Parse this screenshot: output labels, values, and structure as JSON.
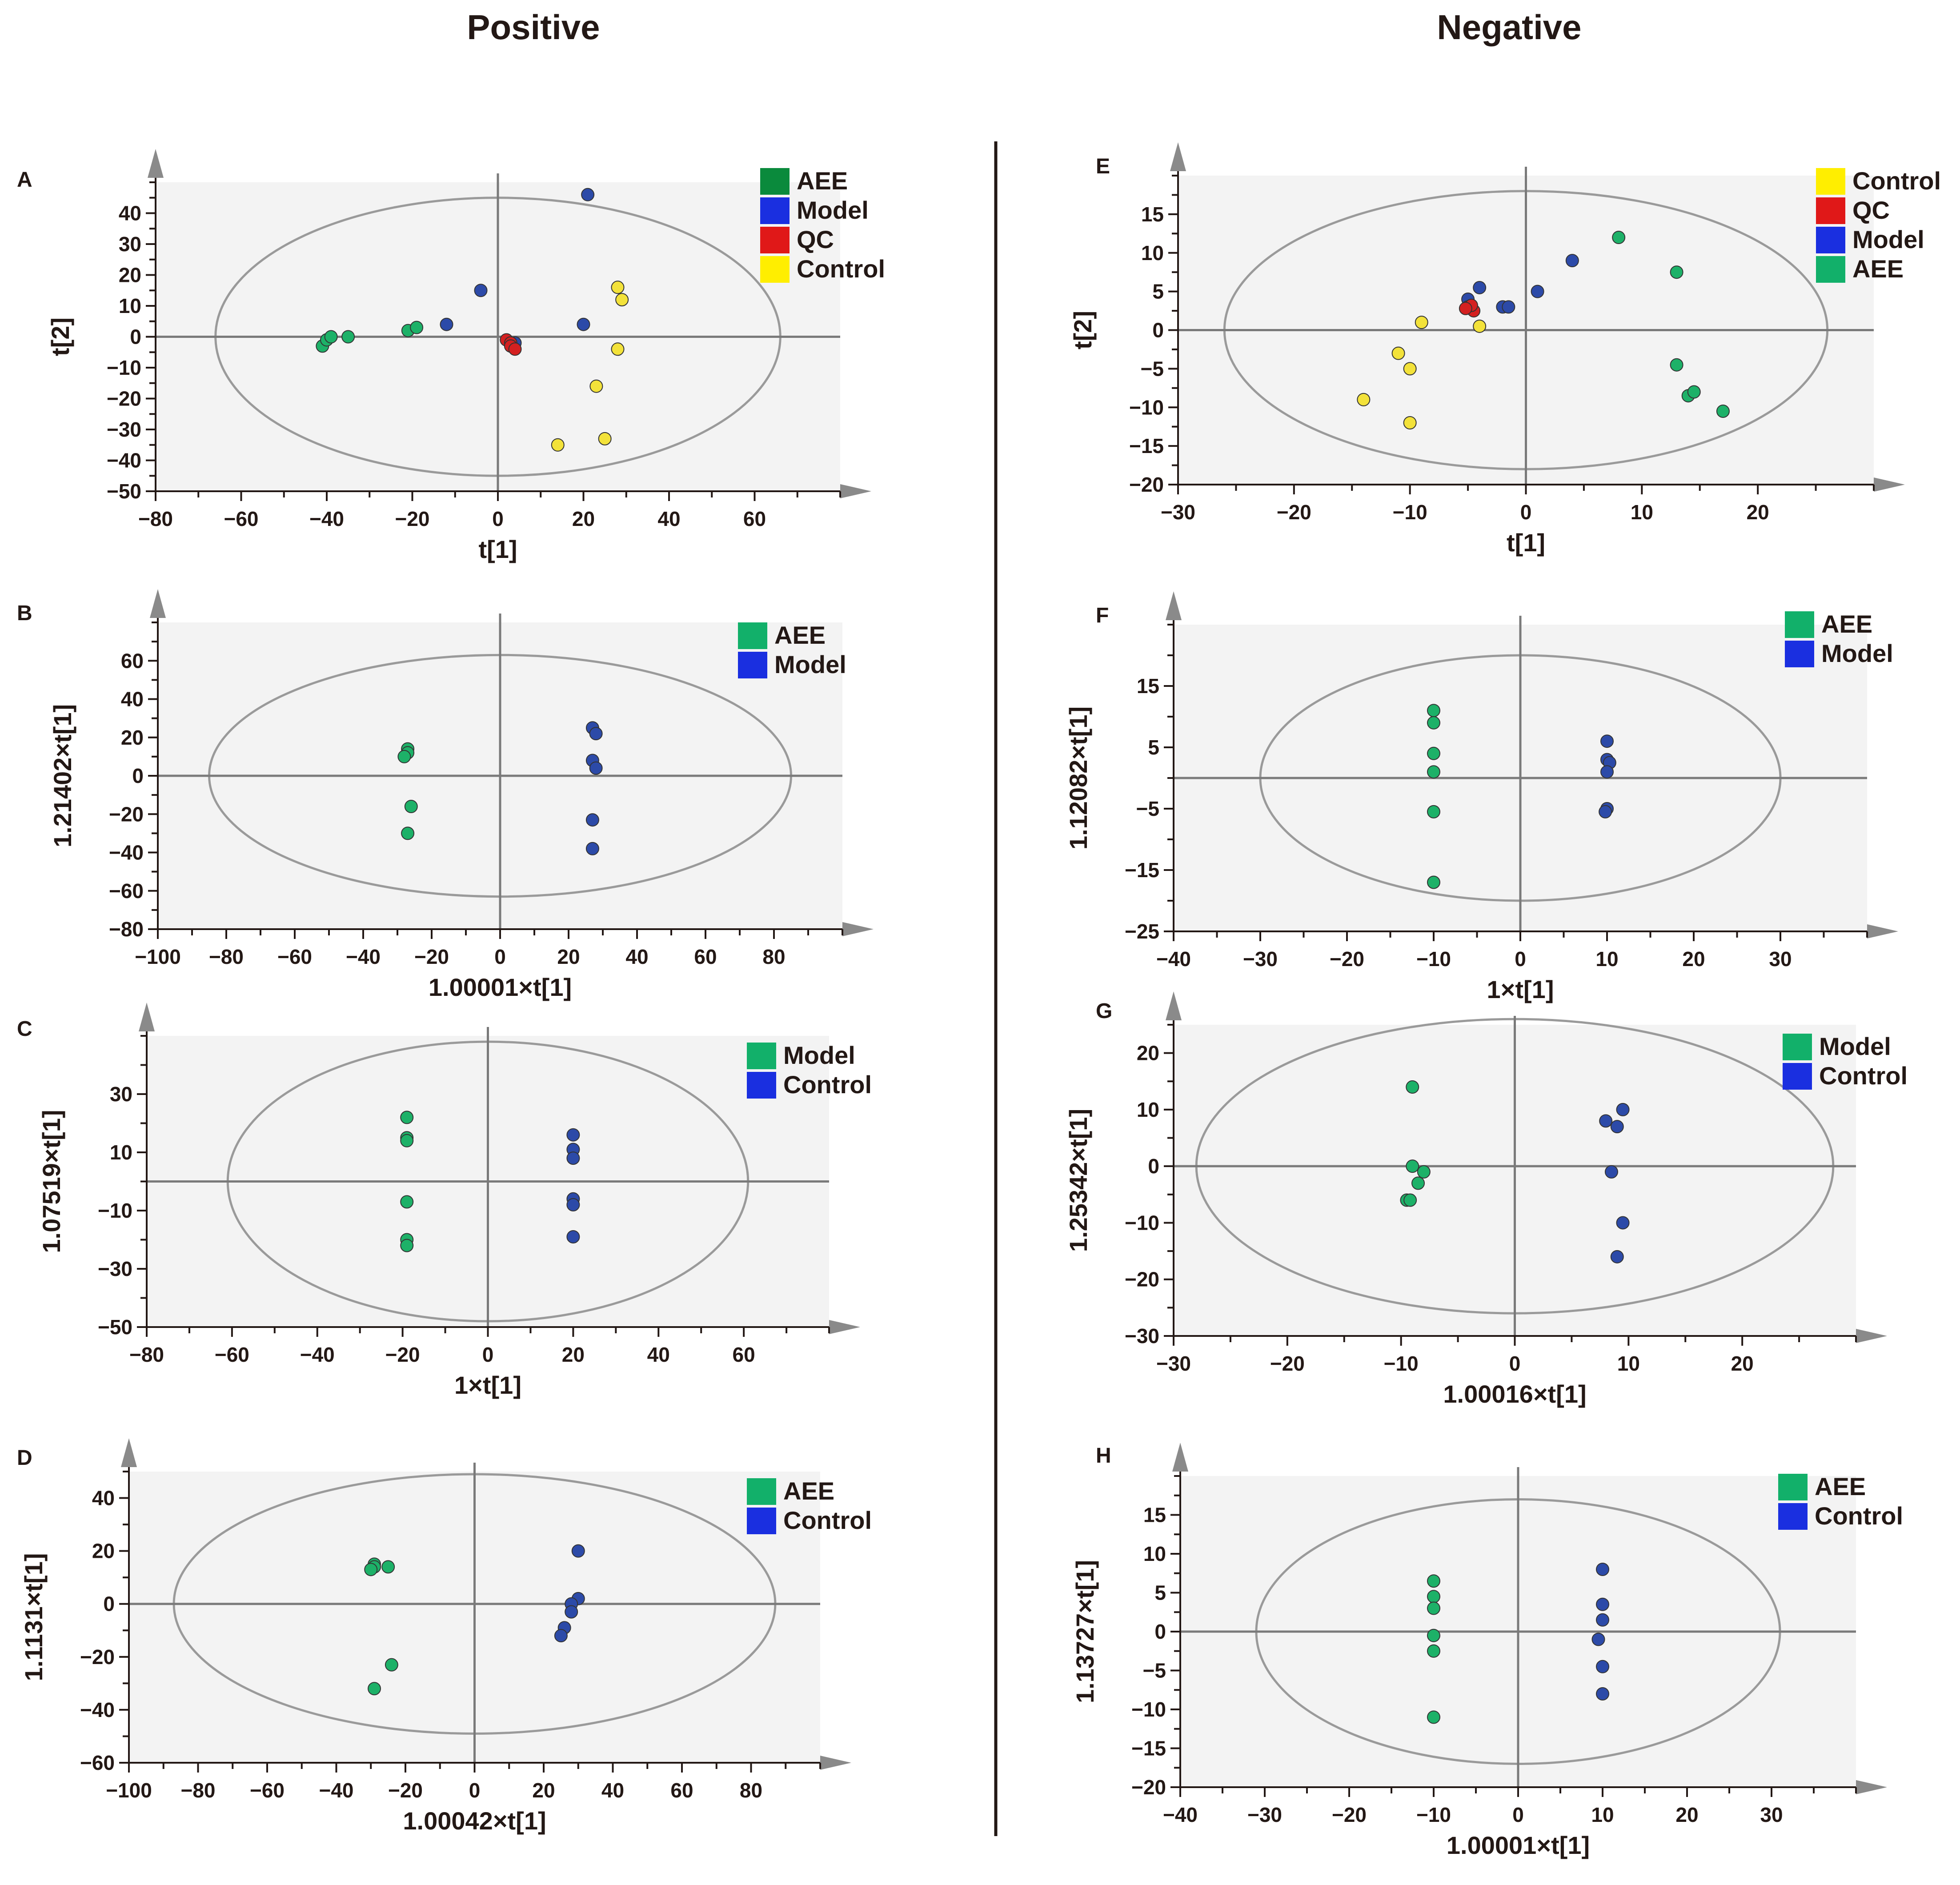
{
  "figure": {
    "column_titles": {
      "left": "Positive",
      "right": "Negative"
    }
  },
  "group_colors": {
    "AEE": "#12b06a",
    "AEE_dark": "#0a8a3c",
    "Model": "#1a2fe0",
    "QC": "#e01818",
    "Control": "#ffee00",
    "Model_as_green": "#12b06a",
    "Control_as_blue": "#1a2fe0",
    "dot_green": "#1db168",
    "dot_blue": "#2c4aa8",
    "dot_red": "#d42020",
    "dot_yellow": "#f3e23a"
  },
  "chart_data": [
    {
      "id": "A",
      "panel_label": "A",
      "type": "scatter",
      "xlabel": "t[1]",
      "ylabel": "t[2]",
      "xlim": [
        -80,
        80
      ],
      "ylim": [
        -50,
        50
      ],
      "xticks": [
        -80,
        -60,
        -40,
        -20,
        0,
        20,
        40,
        60
      ],
      "yticks": [
        40,
        30,
        20,
        10,
        0,
        -10,
        -20,
        -30,
        -40,
        -50
      ],
      "ellipse": {
        "rx": 66,
        "ry": 45
      },
      "legend": [
        {
          "label": "AEE",
          "color": "#0a8a3c"
        },
        {
          "label": "Model",
          "color": "#1a2fe0"
        },
        {
          "label": "QC",
          "color": "#e01818"
        },
        {
          "label": "Control",
          "color": "#ffee00"
        }
      ],
      "series": [
        {
          "name": "AEE",
          "color": "#1db168",
          "points": [
            [
              -41,
              -3
            ],
            [
              -40,
              -1
            ],
            [
              -39,
              0
            ],
            [
              -35,
              0
            ],
            [
              -21,
              2
            ],
            [
              -19,
              3
            ]
          ]
        },
        {
          "name": "Model",
          "color": "#2c4aa8",
          "points": [
            [
              -12,
              4
            ],
            [
              -4,
              15
            ],
            [
              4,
              -2
            ],
            [
              20,
              4
            ],
            [
              21,
              46
            ]
          ]
        },
        {
          "name": "QC",
          "color": "#d42020",
          "points": [
            [
              2,
              -1
            ],
            [
              3,
              -2
            ],
            [
              3,
              -3
            ],
            [
              4,
              -4
            ]
          ]
        },
        {
          "name": "Control",
          "color": "#f3e23a",
          "points": [
            [
              14,
              -35
            ],
            [
              23,
              -16
            ],
            [
              25,
              -33
            ],
            [
              28,
              -4
            ],
            [
              28,
              16
            ],
            [
              29,
              12
            ]
          ]
        }
      ]
    },
    {
      "id": "B",
      "panel_label": "B",
      "type": "scatter",
      "xlabel": "1.00001×t[1]",
      "ylabel": "1.21402×t[1]",
      "xlim": [
        -100,
        100
      ],
      "ylim": [
        -80,
        80
      ],
      "xticks": [
        -100,
        -80,
        -60,
        -40,
        -20,
        0,
        20,
        40,
        60,
        80
      ],
      "yticks": [
        60,
        40,
        20,
        0,
        -20,
        -40,
        -60,
        -80
      ],
      "ellipse": {
        "rx": 85,
        "ry": 63
      },
      "legend": [
        {
          "label": "AEE",
          "color": "#12b06a"
        },
        {
          "label": "Model",
          "color": "#1a2fe0"
        }
      ],
      "series": [
        {
          "name": "AEE",
          "color": "#1db168",
          "points": [
            [
              -27,
              14
            ],
            [
              -27,
              12
            ],
            [
              -28,
              10
            ],
            [
              -26,
              -16
            ],
            [
              -27,
              -30
            ]
          ]
        },
        {
          "name": "Model",
          "color": "#2c4aa8",
          "points": [
            [
              27,
              25
            ],
            [
              28,
              22
            ],
            [
              27,
              8
            ],
            [
              28,
              4
            ],
            [
              27,
              -23
            ],
            [
              27,
              -38
            ]
          ]
        }
      ]
    },
    {
      "id": "C",
      "panel_label": "C",
      "type": "scatter",
      "xlabel": "1×t[1]",
      "ylabel": "1.07519×t[1]",
      "xlim": [
        -80,
        80
      ],
      "ylim": [
        -50,
        50
      ],
      "xticks": [
        -80,
        -60,
        -40,
        -20,
        0,
        20,
        40,
        60
      ],
      "yticks": [
        30,
        10,
        -10,
        -30,
        -50
      ],
      "ellipse": {
        "rx": 61,
        "ry": 48
      },
      "legend": [
        {
          "label": "Model",
          "color": "#12b06a"
        },
        {
          "label": "Control",
          "color": "#1a2fe0"
        }
      ],
      "series": [
        {
          "name": "Model",
          "color": "#1db168",
          "points": [
            [
              -19,
              22
            ],
            [
              -19,
              15
            ],
            [
              -19,
              14
            ],
            [
              -19,
              -7
            ],
            [
              -19,
              -20
            ],
            [
              -19,
              -22
            ]
          ]
        },
        {
          "name": "Control",
          "color": "#2c4aa8",
          "points": [
            [
              20,
              16
            ],
            [
              20,
              11
            ],
            [
              20,
              8
            ],
            [
              20,
              -6
            ],
            [
              20,
              -8
            ],
            [
              20,
              -19
            ]
          ]
        }
      ]
    },
    {
      "id": "D",
      "panel_label": "D",
      "type": "scatter",
      "xlabel": "1.00042×t[1]",
      "ylabel": "1.1131×t[1]",
      "xlim": [
        -100,
        100
      ],
      "ylim": [
        -60,
        50
      ],
      "xticks": [
        -100,
        -80,
        -60,
        -40,
        -20,
        0,
        20,
        40,
        60,
        80
      ],
      "yticks": [
        40,
        20,
        0,
        -20,
        -40,
        -60
      ],
      "ellipse": {
        "rx": 87,
        "ry": 49
      },
      "legend": [
        {
          "label": "AEE",
          "color": "#12b06a"
        },
        {
          "label": "Control",
          "color": "#1a2fe0"
        }
      ],
      "series": [
        {
          "name": "AEE",
          "color": "#1db168",
          "points": [
            [
              -29,
              15
            ],
            [
              -29,
              14
            ],
            [
              -30,
              13
            ],
            [
              -25,
              14
            ],
            [
              -24,
              -23
            ],
            [
              -29,
              -32
            ]
          ]
        },
        {
          "name": "Control",
          "color": "#2c4aa8",
          "points": [
            [
              30,
              20
            ],
            [
              30,
              2
            ],
            [
              28,
              0
            ],
            [
              28,
              -3
            ],
            [
              26,
              -9
            ],
            [
              25,
              -12
            ]
          ]
        }
      ]
    },
    {
      "id": "E",
      "panel_label": "E",
      "type": "scatter",
      "xlabel": "t[1]",
      "ylabel": "t[2]",
      "xlim": [
        -30,
        30
      ],
      "ylim": [
        -20,
        20
      ],
      "xticks": [
        -30,
        -20,
        -10,
        0,
        10,
        20
      ],
      "yticks": [
        15,
        10,
        5,
        0,
        -5,
        -10,
        -15,
        -20
      ],
      "ellipse": {
        "rx": 26,
        "ry": 18
      },
      "legend": [
        {
          "label": "Control",
          "color": "#ffee00"
        },
        {
          "label": "QC",
          "color": "#e01818"
        },
        {
          "label": "Model",
          "color": "#1a2fe0"
        },
        {
          "label": "AEE",
          "color": "#12b06a"
        }
      ],
      "series": [
        {
          "name": "Control",
          "color": "#f3e23a",
          "points": [
            [
              -14,
              -9
            ],
            [
              -11,
              -3
            ],
            [
              -10,
              -12
            ],
            [
              -10,
              -5
            ],
            [
              -9,
              1
            ],
            [
              -4,
              0.5
            ]
          ]
        },
        {
          "name": "Model",
          "color": "#2c4aa8",
          "points": [
            [
              -5,
              4
            ],
            [
              -4,
              5.5
            ],
            [
              -2,
              3
            ],
            [
              -1.5,
              3
            ],
            [
              1,
              5
            ],
            [
              4,
              9
            ]
          ]
        },
        {
          "name": "QC",
          "color": "#d42020",
          "points": [
            [
              -5,
              3
            ],
            [
              -4.5,
              2.5
            ],
            [
              -4.7,
              3.2
            ],
            [
              -5.2,
              2.8
            ]
          ]
        },
        {
          "name": "AEE",
          "color": "#1db168",
          "points": [
            [
              8,
              12
            ],
            [
              13,
              7.5
            ],
            [
              13,
              -4.5
            ],
            [
              14,
              -8.5
            ],
            [
              14.5,
              -8
            ],
            [
              17,
              -10.5
            ]
          ]
        }
      ]
    },
    {
      "id": "F",
      "panel_label": "F",
      "type": "scatter",
      "xlabel": "1×t[1]",
      "ylabel": "1.12082×t[1]",
      "xlim": [
        -40,
        40
      ],
      "ylim": [
        -25,
        25
      ],
      "xticks": [
        -40,
        -30,
        -20,
        -10,
        0,
        10,
        20,
        30
      ],
      "yticks": [
        15,
        5,
        -5,
        -15,
        -25
      ],
      "ellipse": {
        "rx": 30,
        "ry": 20
      },
      "legend": [
        {
          "label": "AEE",
          "color": "#12b06a"
        },
        {
          "label": "Model",
          "color": "#1a2fe0"
        }
      ],
      "series": [
        {
          "name": "AEE",
          "color": "#1db168",
          "points": [
            [
              -10,
              11
            ],
            [
              -10,
              9
            ],
            [
              -10,
              4
            ],
            [
              -10,
              1
            ],
            [
              -10,
              -5.5
            ],
            [
              -10,
              -17
            ]
          ]
        },
        {
          "name": "Model",
          "color": "#2c4aa8",
          "points": [
            [
              10,
              6
            ],
            [
              10,
              3
            ],
            [
              10.3,
              2.5
            ],
            [
              10,
              1
            ],
            [
              10,
              -5
            ],
            [
              9.8,
              -5.5
            ]
          ]
        }
      ]
    },
    {
      "id": "G",
      "panel_label": "G",
      "type": "scatter",
      "xlabel": "1.00016×t[1]",
      "ylabel": "1.25342×t[1]",
      "xlim": [
        -30,
        30
      ],
      "ylim": [
        -30,
        25
      ],
      "xticks": [
        -30,
        -20,
        -10,
        0,
        10,
        20
      ],
      "yticks": [
        20,
        10,
        0,
        -10,
        -20,
        -30
      ],
      "ellipse": {
        "rx": 28,
        "ry": 26
      },
      "legend": [
        {
          "label": "Model",
          "color": "#12b06a"
        },
        {
          "label": "Control",
          "color": "#1a2fe0"
        }
      ],
      "series": [
        {
          "name": "Model",
          "color": "#1db168",
          "points": [
            [
              -9,
              14
            ],
            [
              -9,
              0
            ],
            [
              -8,
              -1
            ],
            [
              -8.5,
              -3
            ],
            [
              -9.5,
              -6
            ],
            [
              -9.2,
              -6
            ]
          ]
        },
        {
          "name": "Control",
          "color": "#2c4aa8",
          "points": [
            [
              8,
              8
            ],
            [
              9,
              7
            ],
            [
              9.5,
              10
            ],
            [
              8.5,
              -1
            ],
            [
              9.5,
              -10
            ],
            [
              9,
              -16
            ]
          ]
        }
      ]
    },
    {
      "id": "H",
      "panel_label": "H",
      "type": "scatter",
      "xlabel": "1.00001×t[1]",
      "ylabel": "1.13727×t[1]",
      "xlim": [
        -40,
        40
      ],
      "ylim": [
        -20,
        20
      ],
      "xticks": [
        -40,
        -30,
        -20,
        -10,
        0,
        10,
        20,
        30
      ],
      "yticks": [
        15,
        10,
        5,
        0,
        -5,
        -10,
        -15,
        -20
      ],
      "ellipse": {
        "rx": 31,
        "ry": 17
      },
      "legend": [
        {
          "label": "AEE",
          "color": "#12b06a"
        },
        {
          "label": "Control",
          "color": "#1a2fe0"
        }
      ],
      "series": [
        {
          "name": "AEE",
          "color": "#1db168",
          "points": [
            [
              -10,
              6.5
            ],
            [
              -10,
              4.5
            ],
            [
              -10,
              3
            ],
            [
              -10,
              -0.5
            ],
            [
              -10,
              -2.5
            ],
            [
              -10,
              -11
            ]
          ]
        },
        {
          "name": "Control",
          "color": "#2c4aa8",
          "points": [
            [
              10,
              8
            ],
            [
              10,
              3.5
            ],
            [
              10,
              1.5
            ],
            [
              9.5,
              -1
            ],
            [
              10,
              -4.5
            ],
            [
              10,
              -8
            ]
          ]
        }
      ]
    }
  ]
}
